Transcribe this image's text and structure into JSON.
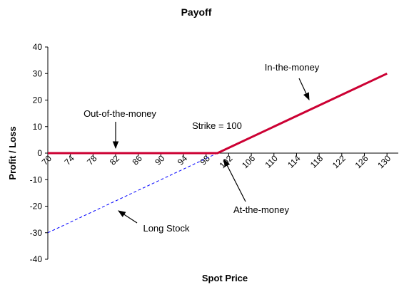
{
  "chart_data": {
    "type": "line",
    "title": "Payoff",
    "xlabel": "Spot Price",
    "ylabel": "Profit / Loss",
    "xlim": [
      70,
      132
    ],
    "ylim": [
      -40,
      40
    ],
    "x_ticks": [
      70,
      74,
      78,
      82,
      86,
      90,
      94,
      98,
      102,
      106,
      110,
      114,
      118,
      122,
      126,
      130
    ],
    "y_ticks": [
      40,
      30,
      20,
      10,
      0,
      -10,
      -20,
      -30,
      -40
    ],
    "grid": false,
    "series": [
      {
        "name": "Long Stock",
        "color": "#0000ff",
        "style": "dashed",
        "x": [
          70,
          130
        ],
        "y": [
          -30,
          30
        ]
      },
      {
        "name": "Payoff",
        "color": "#cc0033",
        "style": "solid",
        "x": [
          70,
          100,
          130
        ],
        "y": [
          0,
          0,
          30
        ]
      }
    ],
    "annotations": [
      {
        "id": "otm",
        "text": "Out-of-the-money"
      },
      {
        "id": "strike",
        "text": "Strike = 100"
      },
      {
        "id": "itm",
        "text": "In-the-money"
      },
      {
        "id": "atm",
        "text": "At-the-money"
      },
      {
        "id": "long",
        "text": "Long Stock"
      }
    ]
  }
}
